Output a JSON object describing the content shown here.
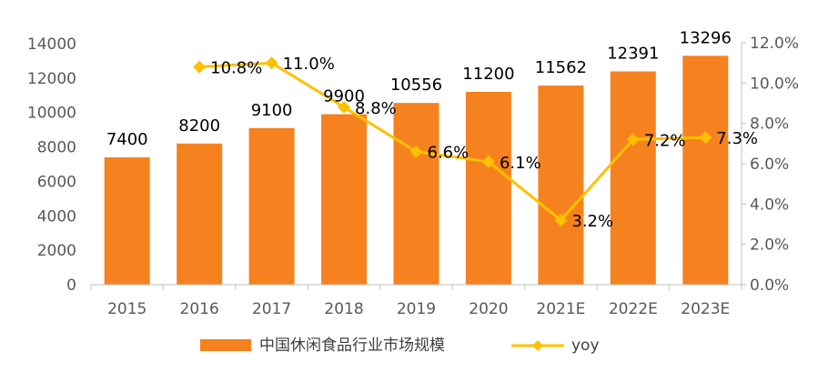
{
  "chart_data": {
    "type": "bar",
    "categories": [
      "2015",
      "2016",
      "2017",
      "2018",
      "2019",
      "2020",
      "2021E",
      "2022E",
      "2023E"
    ],
    "series": [
      {
        "name": "中国休闲食品行业市场规模",
        "type": "bar",
        "axis": "left",
        "values": [
          7400,
          8200,
          9100,
          9900,
          10556,
          11200,
          11562,
          12391,
          13296
        ],
        "labels": [
          "7400",
          "8200",
          "9100",
          "9900",
          "10556",
          "11200",
          "11562",
          "12391",
          "13296"
        ]
      },
      {
        "name": "yoy",
        "type": "line",
        "axis": "right",
        "values": [
          null,
          10.8,
          11.0,
          8.8,
          6.6,
          6.1,
          3.2,
          7.2,
          7.3
        ],
        "labels": [
          "",
          "10.8%",
          "11.0%",
          "8.8%",
          "6.6%",
          "6.1%",
          "3.2%",
          "7.2%",
          "7.3%"
        ]
      }
    ],
    "y_left": {
      "min": 0,
      "max": 14000,
      "ticks": [
        "0",
        "2000",
        "4000",
        "6000",
        "8000",
        "10000",
        "12000",
        "14000"
      ]
    },
    "y_right": {
      "min": 0,
      "max": 12,
      "ticks": [
        "0.0%",
        "2.0%",
        "4.0%",
        "6.0%",
        "8.0%",
        "10.0%",
        "12.0%"
      ]
    },
    "grid": false,
    "legend": "bottom-center",
    "colors": {
      "bar": "#F5821F",
      "line": "#FFC000",
      "axis": "#BFBFBF",
      "tick_text": "#595959",
      "label_text": "#000000"
    }
  }
}
